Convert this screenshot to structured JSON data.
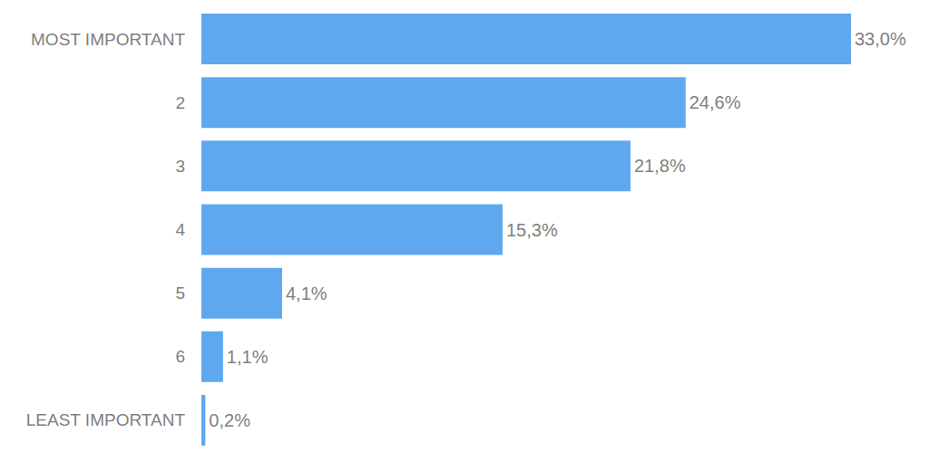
{
  "chart_data": {
    "type": "bar",
    "orientation": "horizontal",
    "categories": [
      "MOST IMPORTANT",
      "2",
      "3",
      "4",
      "5",
      "6",
      "LEAST IMPORTANT"
    ],
    "values": [
      33.0,
      24.6,
      21.8,
      15.3,
      4.1,
      1.1,
      0.2
    ],
    "value_labels": [
      "33,0%",
      "24,6%",
      "21,8%",
      "15,3%",
      "4,1%",
      "1,1%",
      "0,2%"
    ],
    "color": "#5fa8f0",
    "xlim": [
      0,
      33
    ],
    "data_labels": true,
    "tick_labels": "y",
    "grid": false
  }
}
